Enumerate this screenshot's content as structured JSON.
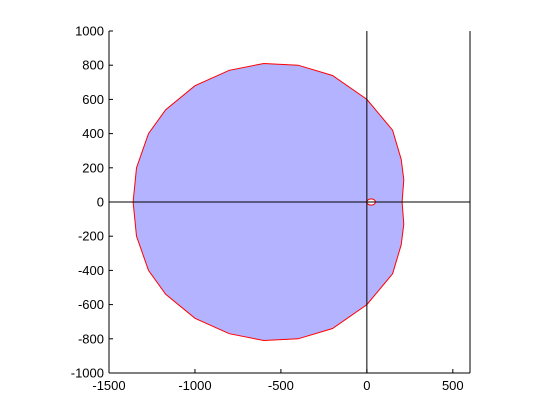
{
  "chart_data": {
    "type": "area",
    "title": "",
    "xlabel": "",
    "ylabel": "",
    "xlim": [
      -1500,
      600
    ],
    "ylim": [
      -1000,
      1000
    ],
    "x_ticks": [
      -1500,
      -1000,
      -500,
      0,
      500
    ],
    "y_ticks": [
      1000,
      800,
      600,
      400,
      200,
      0,
      -200,
      -400,
      -600,
      -800,
      -1000
    ],
    "x_tick_labels": [
      "-1500",
      "-1000",
      "-500",
      "0",
      "500"
    ],
    "y_tick_labels": [
      "1000",
      "800",
      "600",
      "400",
      "200",
      "0",
      "-200",
      "-400",
      "-600",
      "-800",
      "-1000"
    ],
    "grid": false,
    "reference_lines": {
      "vertical_at_x": [
        0,
        600
      ],
      "horizontal_at_y": [
        0
      ]
    },
    "region": {
      "fill_color": "#b3b3ff",
      "edge_color": "#ff0000",
      "boundary_upper": [
        {
          "x": -1360,
          "y": 0
        },
        {
          "x": -1340,
          "y": 200
        },
        {
          "x": -1270,
          "y": 400
        },
        {
          "x": -1170,
          "y": 540
        },
        {
          "x": -1000,
          "y": 680
        },
        {
          "x": -800,
          "y": 770
        },
        {
          "x": -600,
          "y": 810
        },
        {
          "x": -400,
          "y": 800
        },
        {
          "x": -200,
          "y": 740
        },
        {
          "x": 0,
          "y": 600
        },
        {
          "x": 150,
          "y": 420
        },
        {
          "x": 200,
          "y": 250
        },
        {
          "x": 215,
          "y": 130
        },
        {
          "x": 205,
          "y": 0
        }
      ],
      "boundary_lower": [
        {
          "x": 205,
          "y": 0
        },
        {
          "x": 215,
          "y": -130
        },
        {
          "x": 200,
          "y": -250
        },
        {
          "x": 150,
          "y": -420
        },
        {
          "x": 0,
          "y": -600
        },
        {
          "x": -200,
          "y": -740
        },
        {
          "x": -400,
          "y": -800
        },
        {
          "x": -600,
          "y": -810
        },
        {
          "x": -800,
          "y": -770
        },
        {
          "x": -1000,
          "y": -680
        },
        {
          "x": -1170,
          "y": -540
        },
        {
          "x": -1270,
          "y": -400
        },
        {
          "x": -1340,
          "y": -200
        },
        {
          "x": -1360,
          "y": 0
        }
      ],
      "hole": {
        "center_x": 25,
        "center_y": 0,
        "radius_x": 25,
        "radius_y": 18
      }
    }
  }
}
